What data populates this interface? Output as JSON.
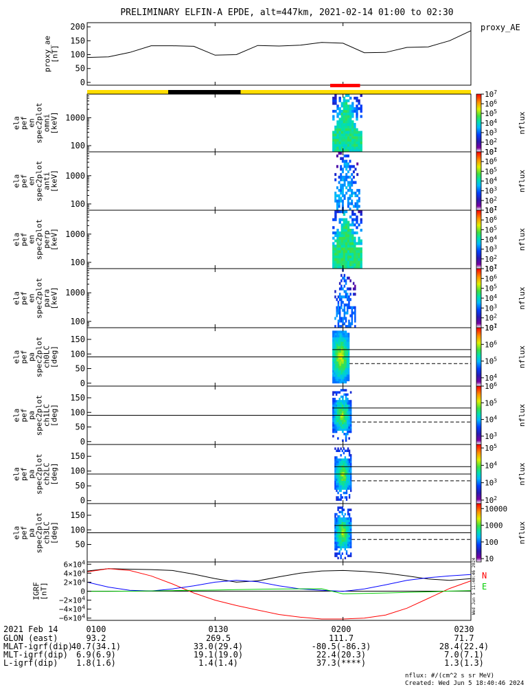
{
  "title": "PRELIMINARY ELFIN-A EPDE, alt=447km, 2021-02-14 01:00 to 02:30",
  "colors": {
    "day_bar": "#ffdd00",
    "night_bar": "#000000",
    "science_bar": "#ff0000",
    "igrf_x": "#000000",
    "igrf_y": "#ff0000",
    "igrf_z": "#0000ff",
    "igrf_n": "#ff0000",
    "igrf_e": "#00cc00"
  },
  "chart_data": [
    {
      "type": "line",
      "panel": "proxy_ae",
      "ylabel": [
        "proxy_ae",
        "[nT]"
      ],
      "legend": "proxy_AE",
      "ylim": [
        -10,
        215
      ],
      "yticks": [
        "200",
        "150",
        "100",
        "50",
        "0"
      ],
      "ytick_values": [
        200,
        150,
        100,
        50,
        0
      ],
      "x_minutes": [
        0,
        5,
        10,
        15,
        20,
        25,
        30,
        35,
        40,
        45,
        50,
        55,
        60,
        65,
        70,
        75,
        80,
        85,
        90
      ],
      "values": [
        90,
        92,
        108,
        132,
        132,
        130,
        98,
        100,
        133,
        131,
        134,
        144,
        141,
        107,
        108,
        126,
        128,
        150,
        186
      ]
    },
    {
      "type": "bar",
      "panel": "state_bar",
      "segments": [
        {
          "start_min": 0,
          "end_min": 19,
          "state": "day"
        },
        {
          "start_min": 19,
          "end_min": 36,
          "state": "night"
        },
        {
          "start_min": 36,
          "end_min": 90,
          "state": "day"
        },
        {
          "start_min": 57,
          "end_min": 64,
          "state": "science"
        }
      ]
    },
    {
      "type": "heatmap",
      "panel": "ela_pef_en_spec2plot_omni",
      "ylabel": [
        "ela",
        "pef",
        "en",
        "spec2plot",
        "omni",
        "[keV]"
      ],
      "yscale": "log",
      "ylim": [
        60,
        7000
      ],
      "yticks": [
        "1000",
        "100"
      ],
      "ytick_values": [
        1000,
        100
      ],
      "colorbar_label": "nflux",
      "colorbar_ticks": [
        "10^7",
        "10^6",
        "10^5",
        "10^4",
        "10^3",
        "10^2",
        "10^1"
      ],
      "colorbar_range_log": [
        1,
        7
      ],
      "time_window_min": [
        57.5,
        64.5
      ],
      "peak_log_flux": 4.5
    },
    {
      "type": "heatmap",
      "panel": "ela_pef_en_spec2plot_anti",
      "ylabel": [
        "ela",
        "pef",
        "en",
        "spec2plot",
        "anti",
        "[keV]"
      ],
      "yscale": "log",
      "ylim": [
        60,
        7000
      ],
      "yticks": [
        "1000",
        "100"
      ],
      "ytick_values": [
        1000,
        100
      ],
      "colorbar_label": "nflux",
      "colorbar_ticks": [
        "10^7",
        "10^6",
        "10^5",
        "10^4",
        "10^3",
        "10^2",
        "10^1"
      ],
      "colorbar_range_log": [
        1,
        7
      ],
      "time_window_min": [
        58,
        64
      ],
      "peak_log_flux": 3.5
    },
    {
      "type": "heatmap",
      "panel": "ela_pef_en_spec2plot_perp",
      "ylabel": [
        "ela",
        "pef",
        "en",
        "spec2plot",
        "perp",
        "[keV]"
      ],
      "yscale": "log",
      "ylim": [
        60,
        7000
      ],
      "yticks": [
        "1000",
        "100"
      ],
      "ytick_values": [
        1000,
        100
      ],
      "colorbar_label": "nflux",
      "colorbar_ticks": [
        "10^7",
        "10^6",
        "10^5",
        "10^4",
        "10^3",
        "10^2",
        "10^1"
      ],
      "colorbar_range_log": [
        1,
        7
      ],
      "time_window_min": [
        57.5,
        64.5
      ],
      "peak_log_flux": 4.6
    },
    {
      "type": "heatmap",
      "panel": "ela_pef_en_spec2plot_para",
      "ylabel": [
        "ela",
        "pef",
        "en",
        "spec2plot",
        "para",
        "[keV]"
      ],
      "yscale": "log",
      "ylim": [
        60,
        7000
      ],
      "yticks": [
        "1000",
        "100"
      ],
      "ytick_values": [
        1000,
        100
      ],
      "colorbar_label": "nflux",
      "colorbar_ticks": [
        "10^7",
        "10^6",
        "10^5",
        "10^4",
        "10^3",
        "10^2",
        "10^1"
      ],
      "colorbar_range_log": [
        1,
        7
      ],
      "time_window_min": [
        58,
        63
      ],
      "peak_log_flux": 3.2
    },
    {
      "type": "heatmap",
      "panel": "ela_pef_pa_spec2plot_ch0LC",
      "ylabel": [
        "ela",
        "pef",
        "pa",
        "spec2plot",
        "ch0LC",
        "[deg]"
      ],
      "ylim": [
        -10,
        190
      ],
      "yticks": [
        "150",
        "100",
        "50",
        "0"
      ],
      "ytick_values": [
        150,
        100,
        50,
        0
      ],
      "colorbar_label": "nflux",
      "colorbar_ticks": [
        "10^7",
        "10^6",
        "10^5",
        "10^4"
      ],
      "colorbar_range_log": [
        3.5,
        7
      ],
      "time_window_min": [
        57.5,
        61.5
      ],
      "solid_lines_deg": [
        90,
        115
      ],
      "dashed_lc_deg": 67,
      "lc_end_min": 90
    },
    {
      "type": "heatmap",
      "panel": "ela_pef_pa_spec2plot_ch1LC",
      "ylabel": [
        "ela",
        "pef",
        "pa",
        "spec2plot",
        "ch1LC",
        "[deg]"
      ],
      "ylim": [
        -10,
        190
      ],
      "yticks": [
        "150",
        "100",
        "50",
        "0"
      ],
      "ytick_values": [
        150,
        100,
        50,
        0
      ],
      "colorbar_label": "nflux",
      "colorbar_ticks": [
        "10^6",
        "10^5",
        "10^4",
        "10^3"
      ],
      "colorbar_range_log": [
        2.5,
        6
      ],
      "time_window_min": [
        57.5,
        62
      ],
      "solid_lines_deg": [
        90,
        115
      ],
      "dashed_lc_deg": 67,
      "lc_end_min": 90
    },
    {
      "type": "heatmap",
      "panel": "ela_pef_pa_spec2plot_ch2LC",
      "ylabel": [
        "ela",
        "pef",
        "pa",
        "spec2plot",
        "ch2LC",
        "[deg]"
      ],
      "ylim": [
        -10,
        190
      ],
      "yticks": [
        "150",
        "100",
        "50",
        "0"
      ],
      "ytick_values": [
        150,
        100,
        50,
        0
      ],
      "colorbar_label": "nflux",
      "colorbar_ticks": [
        "10^5",
        "10^4",
        "10^3",
        "10^2"
      ],
      "colorbar_range_log": [
        1.8,
        5.2
      ],
      "time_window_min": [
        58,
        62
      ],
      "solid_lines_deg": [
        90,
        115
      ],
      "dashed_lc_deg": 67,
      "lc_end_min": 90
    },
    {
      "type": "heatmap",
      "panel": "ela_pef_pa_spec2plot_ch3LC",
      "ylabel": [
        "ela",
        "pef",
        "pa",
        "spec2plot",
        "ch3LC",
        "[deg]"
      ],
      "ylim": [
        -10,
        190
      ],
      "yticks": [
        "150",
        "100",
        "50"
      ],
      "ytick_values": [
        150,
        100,
        50
      ],
      "colorbar_label": "nflux",
      "colorbar_ticks": [
        "10000",
        "1000",
        "100",
        "10"
      ],
      "colorbar_tick_values": [
        10000,
        1000,
        100,
        10
      ],
      "colorbar_range_log": [
        0.8,
        4.3
      ],
      "time_window_min": [
        58,
        62
      ],
      "solid_lines_deg": [
        90,
        115
      ],
      "dashed_lc_deg": 67,
      "lc_end_min": 90
    },
    {
      "type": "line",
      "panel": "igrf",
      "ylabel": [
        "IGRF",
        "[nT]"
      ],
      "ylim": [
        -65000,
        65000
      ],
      "yticks": [
        "6×10^4",
        "4×10^4",
        "2×10^4",
        "0",
        "−2×10^4",
        "−4×10^4",
        "−6×10^4"
      ],
      "ytick_values": [
        60000,
        40000,
        20000,
        0,
        -20000,
        -40000,
        -60000
      ],
      "legend": [
        "N",
        "E"
      ],
      "x_minutes": [
        0,
        5,
        10,
        15,
        20,
        25,
        30,
        35,
        40,
        45,
        50,
        55,
        60,
        65,
        70,
        75,
        80,
        85,
        90
      ],
      "series": [
        {
          "values": [
            45000,
            50000,
            49000,
            48000,
            46000,
            38000,
            28000,
            20000,
            23000,
            32000,
            40000,
            45000,
            46000,
            44000,
            40000,
            34000,
            27000,
            24000,
            28000
          ]
        },
        {
          "values": [
            43000,
            50000,
            46000,
            34000,
            16000,
            -4000,
            -20000,
            -32000,
            -42000,
            -52000,
            -58000,
            -62000,
            -62000,
            -60000,
            -53000,
            -38000,
            -16000,
            6000,
            23000
          ]
        },
        {
          "values": [
            20000,
            9000,
            2000,
            400,
            5000,
            12000,
            20000,
            24000,
            21000,
            12000,
            5000,
            2000,
            -500,
            5000,
            14000,
            24000,
            30000,
            34000,
            37000
          ]
        },
        {
          "values": [
            -500,
            -500,
            0,
            600,
            1200,
            2000,
            2500,
            3300,
            4300,
            4800,
            5200,
            5400,
            -6000,
            -5000,
            -4000,
            -2800,
            -1500,
            200,
            1000
          ]
        }
      ]
    }
  ],
  "xaxis": {
    "date_label": "2021 Feb 14",
    "ticks": [
      "0100",
      "0130",
      "0200",
      "0230"
    ],
    "tick_minutes": [
      0,
      30,
      60,
      90
    ]
  },
  "orbit_rows": [
    {
      "label": "GLON (east)",
      "values": [
        "93.2",
        "269.5",
        "111.7",
        "71.7"
      ]
    },
    {
      "label": "MLAT-igrf(dip)",
      "values": [
        "40.7(34.1)",
        "33.0(29.4)",
        "-80.5(-86.3)",
        "28.4(22.4)"
      ]
    },
    {
      "label": "MLT-igrf(dip)",
      "values": [
        "6.9(6.9)",
        "19.1(19.0)",
        "22.4(20.3)",
        "7.0(7.1)"
      ]
    },
    {
      "label": "L-igrf(dip)",
      "values": [
        "1.8(1.6)",
        "1.4(1.4)",
        "37.3(****)",
        "1.3(1.3)"
      ]
    }
  ],
  "footer": {
    "units": "nflux: #/(cm^2 s sr MeV)",
    "created": "Created: Wed Jun  5 18:40:46 2024",
    "stamp": "Wed Jun  5 11:40:46 2024"
  }
}
